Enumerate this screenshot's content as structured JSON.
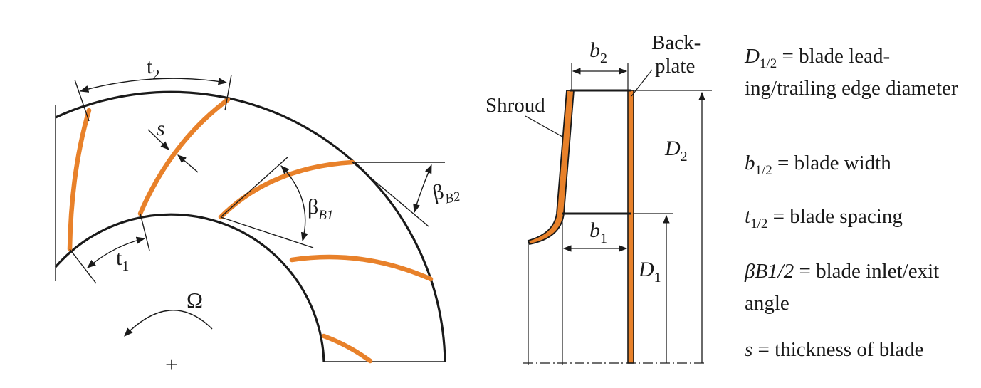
{
  "colors": {
    "blade": "#e8812a",
    "line": "#1a1a1a",
    "background": "#ffffff"
  },
  "impeller_front_view": {
    "labels": {
      "t2": {
        "base": "t",
        "sub": "2"
      },
      "t1": {
        "base": "t",
        "sub": "1"
      },
      "s": "s",
      "beta_b1": {
        "base": "β",
        "sub": "B1"
      },
      "beta_b2": {
        "base": "β",
        "sub": "B2"
      },
      "omega": "Ω",
      "center": "+"
    }
  },
  "meridional_view": {
    "labels": {
      "shroud": "Shroud",
      "backplate_line1": "Back-",
      "backplate_line2": "plate",
      "b2": {
        "base": "b",
        "sub": "2"
      },
      "b1": {
        "base": "b",
        "sub": "1"
      },
      "d2": {
        "base": "D",
        "sub": "2"
      },
      "d1": {
        "base": "D",
        "sub": "1"
      }
    }
  },
  "legend": [
    {
      "symbol": "D",
      "sub": "1/2",
      "text": " = blade lead-ing/trailing edge diameter"
    },
    {
      "symbol": "b",
      "sub": "1/2",
      "text": " = blade width"
    },
    {
      "symbol": "t",
      "sub": "1/2",
      "text": " = blade spacing"
    },
    {
      "symbol": "βB1/2",
      "sub": "",
      "text": " = blade inlet/exit angle"
    },
    {
      "symbol": "s",
      "sub": "",
      "text": " = thickness of blade"
    }
  ]
}
